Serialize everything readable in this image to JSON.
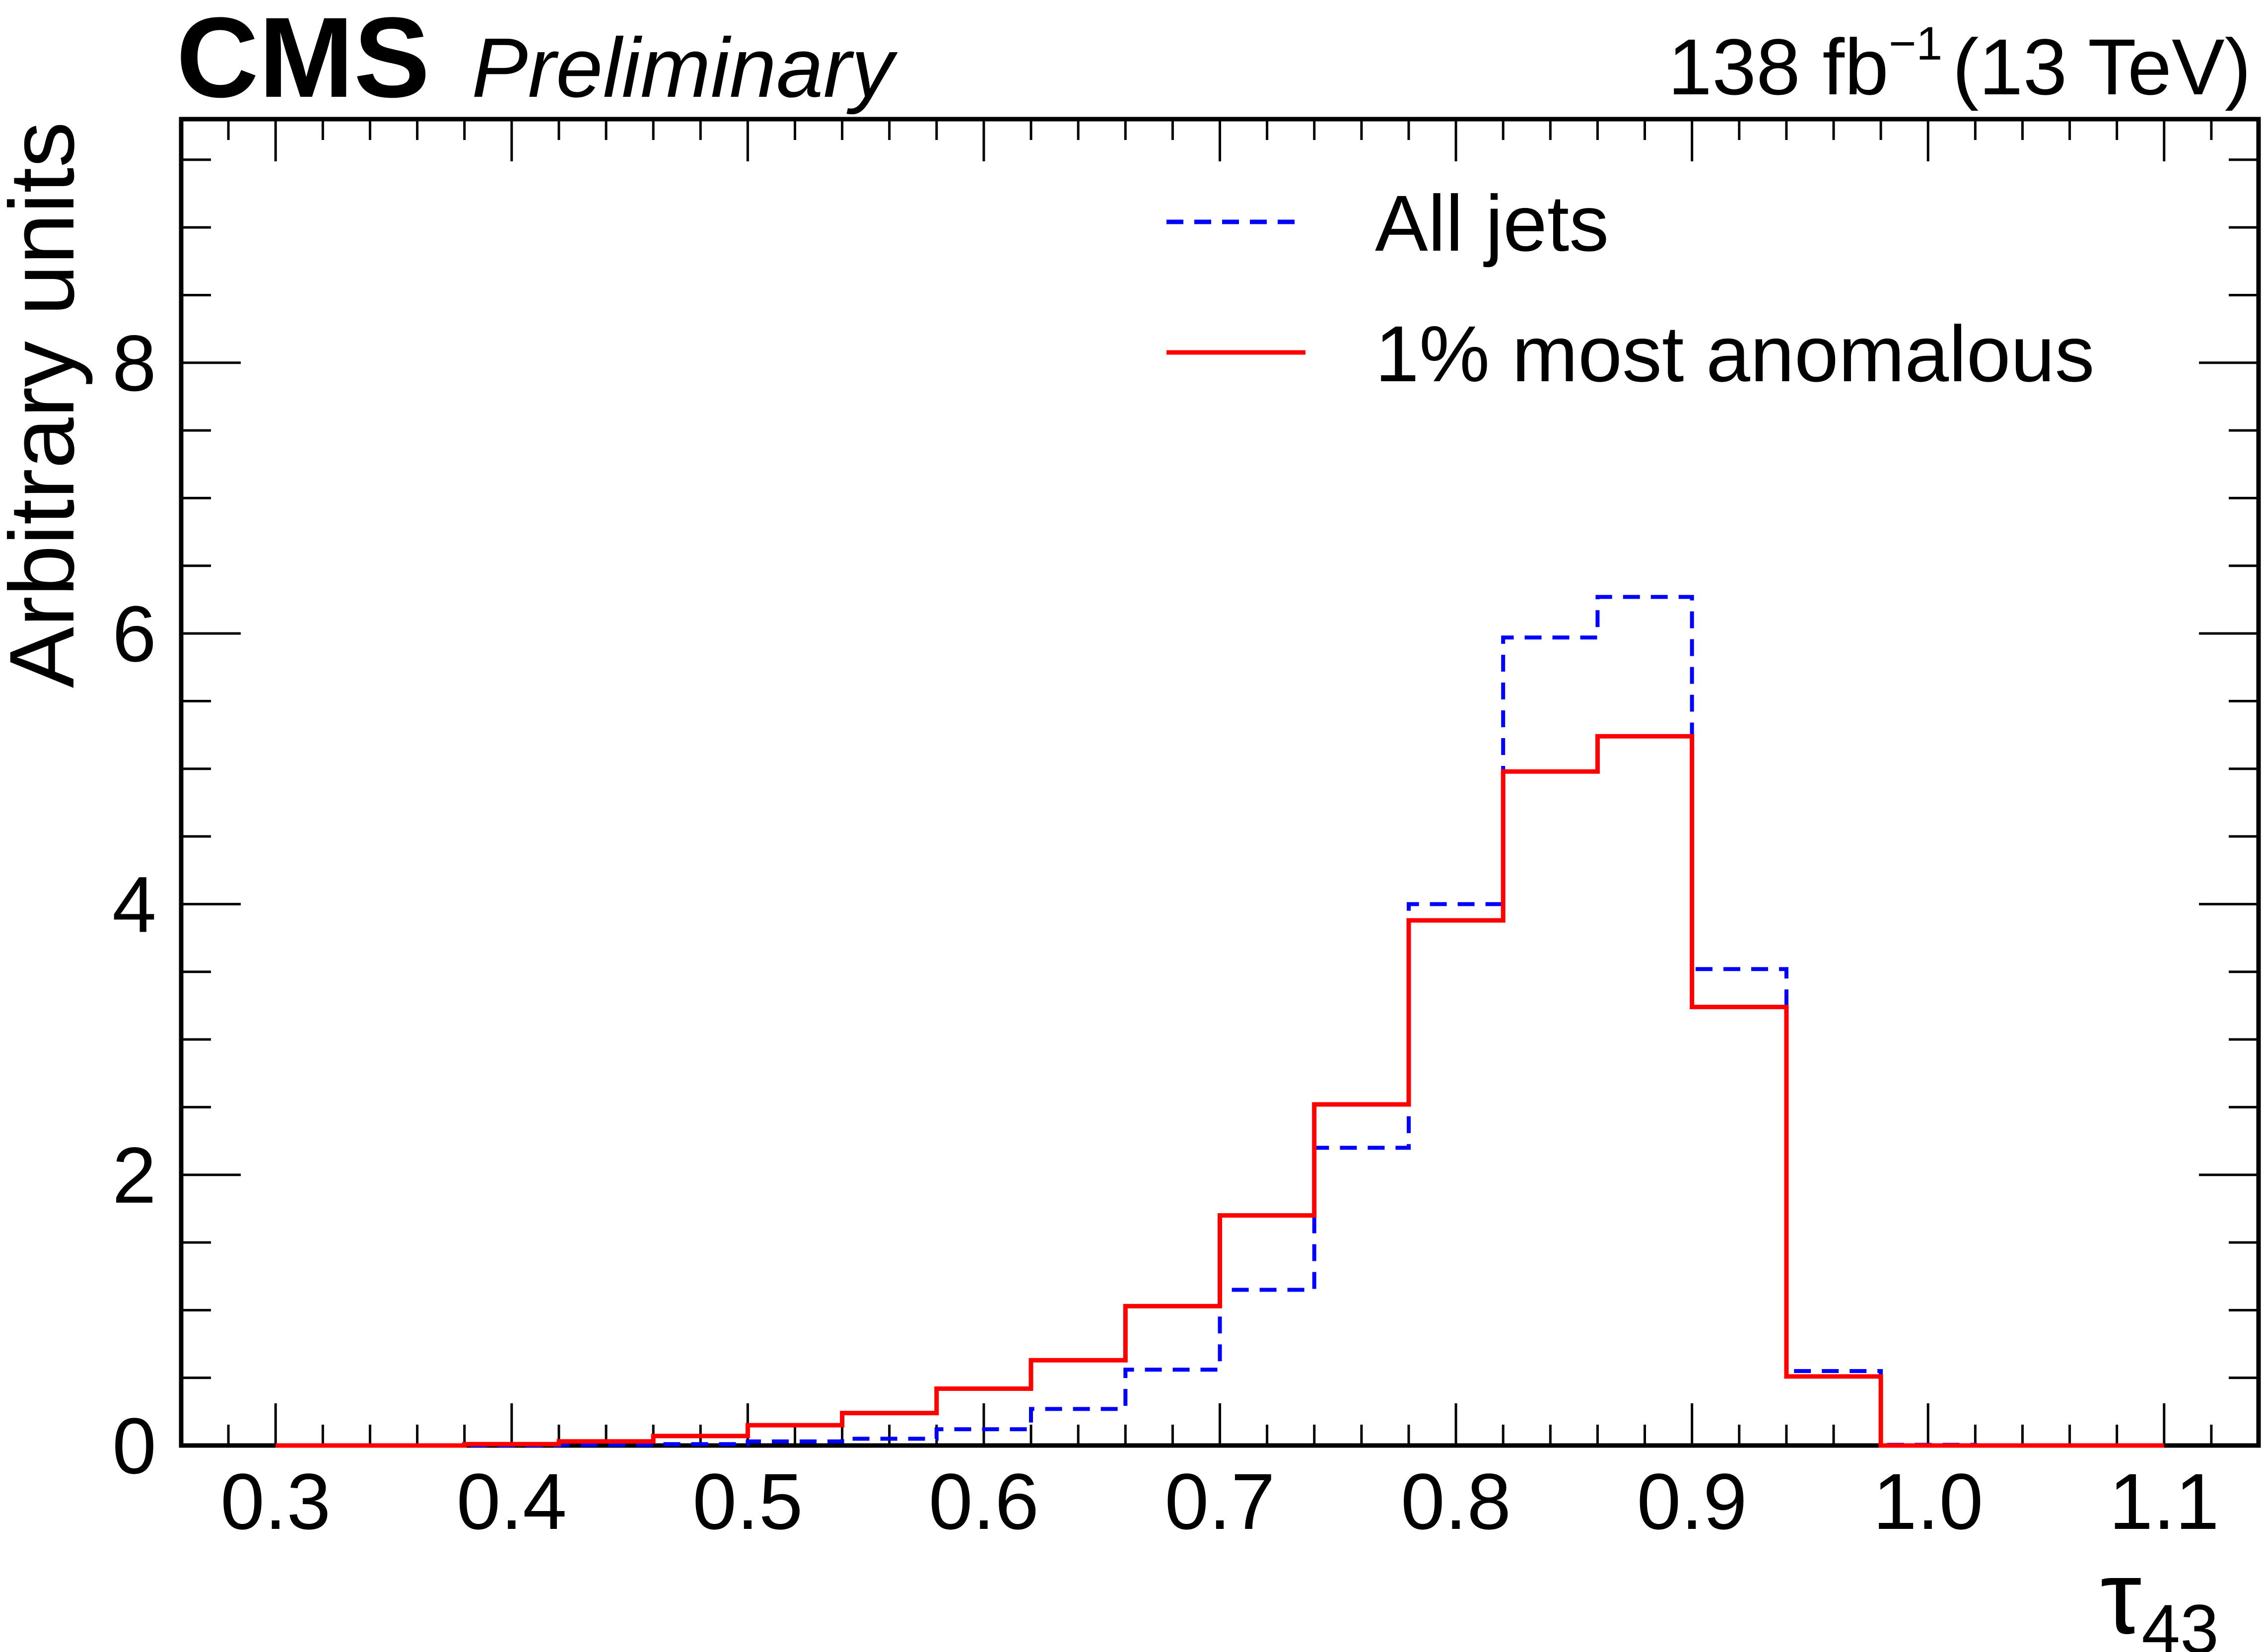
{
  "header": {
    "experiment": "CMS",
    "status": "Preliminary",
    "lumi_value": "138 fb",
    "lumi_exp": "−1",
    "energy": "(13 TeV)"
  },
  "chart_data": {
    "type": "line",
    "subtype": "step-histogram",
    "xlabel": "τ",
    "xlabel_sub": "43",
    "ylabel": "Arbitrary units",
    "xlim": [
      0.26,
      1.14
    ],
    "ylim": [
      0,
      9.8
    ],
    "x_ticks": [
      {
        "value": 0.3,
        "label": "0.3"
      },
      {
        "value": 0.4,
        "label": "0.4"
      },
      {
        "value": 0.5,
        "label": "0.5"
      },
      {
        "value": 0.6,
        "label": "0.6"
      },
      {
        "value": 0.7,
        "label": "0.7"
      },
      {
        "value": 0.8,
        "label": "0.8"
      },
      {
        "value": 0.9,
        "label": "0.9"
      },
      {
        "value": 1.0,
        "label": "1.0"
      },
      {
        "value": 1.1,
        "label": "1.1"
      }
    ],
    "y_ticks": [
      {
        "value": 0,
        "label": "0"
      },
      {
        "value": 2,
        "label": "2"
      },
      {
        "value": 4,
        "label": "4"
      },
      {
        "value": 6,
        "label": "6"
      },
      {
        "value": 8,
        "label": "8"
      }
    ],
    "bin_edges": [
      0.3,
      0.34,
      0.38,
      0.42,
      0.46,
      0.5,
      0.54,
      0.58,
      0.62,
      0.66,
      0.7,
      0.74,
      0.78,
      0.82,
      0.86,
      0.9,
      0.94,
      0.98,
      1.02,
      1.06,
      1.1
    ],
    "series": [
      {
        "name": "All jets",
        "color": "#0000ff",
        "style": "dashed",
        "values": [
          0.0,
          0.0,
          0.0,
          0.005,
          0.01,
          0.03,
          0.05,
          0.12,
          0.27,
          0.56,
          1.15,
          2.2,
          4.0,
          5.97,
          6.27,
          3.52,
          0.55,
          0.005,
          0.0,
          0.0
        ]
      },
      {
        "name": "1% most anomalous",
        "color": "#ff0000",
        "style": "solid",
        "values": [
          0.0,
          0.0,
          0.01,
          0.03,
          0.07,
          0.15,
          0.24,
          0.42,
          0.63,
          1.03,
          1.7,
          2.52,
          3.88,
          4.98,
          5.24,
          3.24,
          0.51,
          0.0,
          0.0,
          0.0
        ]
      }
    ],
    "legend_position": "top-right",
    "grid": false
  }
}
